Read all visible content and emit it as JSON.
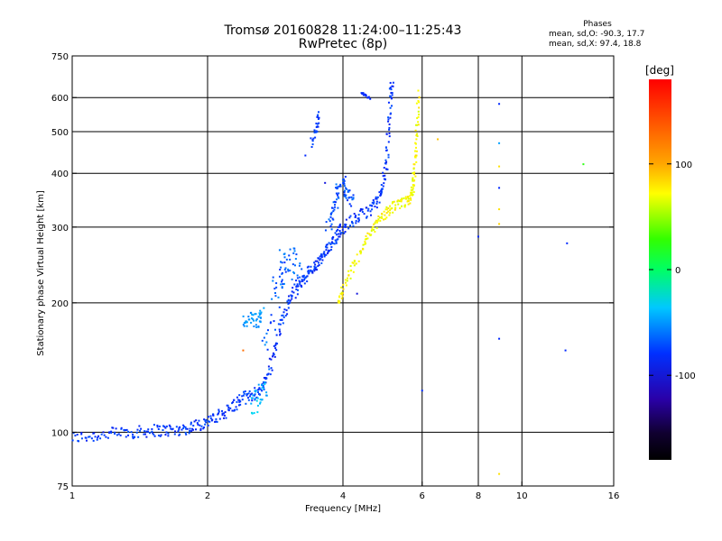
{
  "header": {
    "title_line1": "Tromsø 20160828 11:24:00–11:25:43",
    "title_line2": "RwPretec (8p)",
    "stats_title": "Phases",
    "stats_o": "mean, sd,O: -90.3, 17.7",
    "stats_x": "mean, sd,X:  97.4, 18.8"
  },
  "colorbar": {
    "title": "[deg]",
    "ticks": [
      {
        "value": 100,
        "label": "100"
      },
      {
        "value": 0,
        "label": "0"
      },
      {
        "value": -100,
        "label": "-100"
      }
    ],
    "range": [
      -180,
      180
    ]
  },
  "chart_data": {
    "type": "scatter",
    "title": "Tromsø 20160828 11:24:00–11:25:43",
    "subtitle": "RwPretec (8p)",
    "xlabel": "Frequency [MHz]",
    "ylabel": "Stationary phase Virtual Height [km]",
    "xscale": "log",
    "yscale": "log",
    "xlim": [
      1,
      16
    ],
    "ylim": [
      75,
      750
    ],
    "grid": true,
    "xticks": [
      1,
      2,
      4,
      6,
      8,
      10,
      16
    ],
    "xtick_labels": [
      "1",
      "2",
      "4",
      "6",
      "8",
      "10",
      "16"
    ],
    "xgrid": [
      2,
      4,
      6,
      8,
      10
    ],
    "yticks": [
      75,
      100,
      200,
      300,
      400,
      500,
      600,
      750
    ],
    "ytick_labels": [
      "75",
      "100",
      "200",
      "300",
      "400",
      "500",
      "600",
      "750"
    ],
    "ygrid": [
      100,
      200,
      300,
      400,
      500,
      600
    ],
    "color_variable": "Phase [deg]",
    "series": [
      {
        "name": "O",
        "mean_phase": -90.3,
        "traces": [
          {
            "points": [
              [
                1.0,
                97
              ],
              [
                1.1,
                98
              ],
              [
                1.2,
                99
              ],
              [
                1.3,
                100
              ],
              [
                1.4,
                100
              ],
              [
                1.5,
                101
              ],
              [
                1.6,
                101
              ],
              [
                1.7,
                101
              ],
              [
                1.8,
                102
              ],
              [
                1.9,
                104
              ],
              [
                2.0,
                106
              ],
              [
                2.1,
                108
              ],
              [
                2.2,
                112
              ],
              [
                2.3,
                116
              ],
              [
                2.4,
                120
              ],
              [
                2.5,
                122
              ],
              [
                2.6,
                124
              ],
              [
                2.7,
                132
              ],
              [
                2.8,
                150
              ],
              [
                2.9,
                175
              ],
              [
                3.0,
                195
              ],
              [
                3.1,
                210
              ],
              [
                3.2,
                220
              ],
              [
                3.3,
                230
              ],
              [
                3.4,
                238
              ],
              [
                3.5,
                245
              ],
              [
                3.6,
                255
              ],
              [
                3.7,
                265
              ],
              [
                3.8,
                280
              ],
              [
                3.9,
                290
              ],
              [
                4.0,
                300
              ],
              [
                4.2,
                310
              ],
              [
                4.4,
                320
              ],
              [
                4.6,
                330
              ],
              [
                4.8,
                345
              ],
              [
                4.9,
                370
              ],
              [
                5.0,
                420
              ],
              [
                5.05,
                500
              ],
              [
                5.1,
                600
              ],
              [
                5.15,
                645
              ]
            ],
            "spread": 0.03,
            "phase": -95,
            "phase_sd": 12
          },
          {
            "points": [
              [
                2.7,
                150
              ],
              [
                2.8,
                200
              ],
              [
                2.9,
                235
              ],
              [
                3.0,
                250
              ],
              [
                3.1,
                245
              ],
              [
                3.2,
                240
              ]
            ],
            "spread": 0.08,
            "phase": -80,
            "phase_sd": 20
          },
          {
            "points": [
              [
                3.7,
                300
              ],
              [
                3.8,
                330
              ],
              [
                3.9,
                360
              ],
              [
                4.0,
                380
              ],
              [
                4.1,
                360
              ],
              [
                4.2,
                340
              ]
            ],
            "spread": 0.05,
            "phase": -85,
            "phase_sd": 15
          },
          {
            "points": [
              [
                2.4,
                180
              ],
              [
                2.5,
                185
              ],
              [
                2.6,
                180
              ],
              [
                2.65,
                190
              ]
            ],
            "spread": 0.03,
            "phase": -60,
            "phase_sd": 10
          },
          {
            "points": [
              [
                2.5,
                115
              ],
              [
                2.6,
                120
              ],
              [
                2.7,
                130
              ]
            ],
            "spread": 0.05,
            "phase": -40,
            "phase_sd": 20
          },
          {
            "points": [
              [
                3.4,
                470
              ],
              [
                3.5,
                510
              ],
              [
                3.55,
                550
              ]
            ],
            "spread": 0.02,
            "phase": -95,
            "phase_sd": 10
          },
          {
            "points": [
              [
                4.4,
                610
              ],
              [
                4.6,
                600
              ]
            ],
            "spread": 0.01,
            "phase": -100,
            "phase_sd": 5
          }
        ],
        "isolated": [
          [
            3.3,
            440,
            -100
          ],
          [
            3.65,
            380,
            -110
          ],
          [
            4.3,
            210,
            -110
          ],
          [
            6.0,
            125,
            -100
          ],
          [
            8.0,
            285,
            -100
          ],
          [
            8.9,
            165,
            -100
          ],
          [
            8.9,
            580,
            -100
          ],
          [
            8.9,
            370,
            -100
          ],
          [
            8.9,
            470,
            -55
          ],
          [
            12.5,
            155,
            -100
          ],
          [
            12.6,
            275,
            -100
          ]
        ]
      },
      {
        "name": "X",
        "mean_phase": 97.4,
        "traces": [
          {
            "points": [
              [
                3.9,
                200
              ],
              [
                4.0,
                215
              ],
              [
                4.2,
                240
              ],
              [
                4.4,
                265
              ],
              [
                4.6,
                290
              ],
              [
                4.8,
                310
              ],
              [
                5.0,
                325
              ],
              [
                5.2,
                335
              ],
              [
                5.4,
                340
              ],
              [
                5.6,
                345
              ],
              [
                5.7,
                360
              ],
              [
                5.75,
                390
              ],
              [
                5.8,
                430
              ],
              [
                5.85,
                520
              ],
              [
                5.9,
                620
              ]
            ],
            "spread": 0.025,
            "phase": 100,
            "phase_sd": 12
          }
        ],
        "isolated": [
          [
            6.5,
            480,
            120
          ],
          [
            8.9,
            415,
            110
          ],
          [
            8.9,
            330,
            110
          ],
          [
            8.9,
            305,
            115
          ],
          [
            8.9,
            80,
            110
          ],
          [
            13.7,
            420,
            40
          ],
          [
            2.4,
            155,
            150
          ]
        ]
      }
    ]
  }
}
